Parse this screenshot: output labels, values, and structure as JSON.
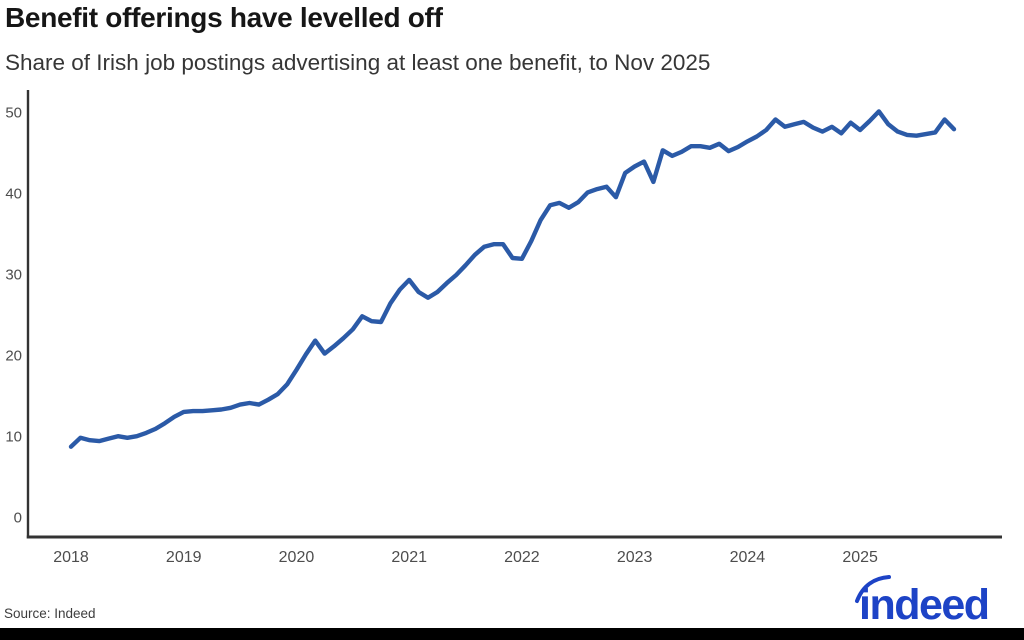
{
  "header": {
    "title": "Benefit offerings have levelled off",
    "subtitle": "Share of Irish job postings advertising at least one benefit, to Nov 2025"
  },
  "source": {
    "label": "Source: Indeed"
  },
  "logo": {
    "text": "indeed",
    "color": "#1d43c6"
  },
  "colors": {
    "line": "#2b5aa7",
    "axis": "#333333",
    "tick_text": "#4d4d4d",
    "title_text": "#161616",
    "subtitle_text": "#363636",
    "source_text": "#3d3d3d",
    "bottom_bar": "#000000",
    "background": "#ffffff"
  },
  "chart_data": {
    "type": "line",
    "title": "Benefit offerings have levelled off",
    "subtitle": "Share of Irish job postings advertising at least one benefit, to Nov 2025",
    "xlabel": "",
    "ylabel": "",
    "x_start": "2018-01",
    "x_end": "2025-11",
    "x_frequency": "monthly",
    "x_tick_labels": [
      "2018",
      "2019",
      "2020",
      "2021",
      "2022",
      "2023",
      "2024",
      "2025"
    ],
    "y_ticks": [
      0,
      10,
      20,
      30,
      40,
      50
    ],
    "ylim": [
      0,
      52
    ],
    "grid": false,
    "legend": false,
    "series": [
      {
        "name": "Share of Irish job postings advertising at least one benefit (%)",
        "monthly_values": [
          8.8,
          9.9,
          9.6,
          9.5,
          9.8,
          10.1,
          9.9,
          10.1,
          10.5,
          11.0,
          11.7,
          12.5,
          13.1,
          13.2,
          13.2,
          13.3,
          13.4,
          13.6,
          14.0,
          14.2,
          14.0,
          14.6,
          15.3,
          16.5,
          18.3,
          20.2,
          21.9,
          20.3,
          21.2,
          22.2,
          23.3,
          24.9,
          24.3,
          24.2,
          26.5,
          28.2,
          29.4,
          27.9,
          27.2,
          27.9,
          29.0,
          30.0,
          31.2,
          32.5,
          33.5,
          33.8,
          33.8,
          32.1,
          32.0,
          34.2,
          36.8,
          38.6,
          38.9,
          38.3,
          39.0,
          40.2,
          40.6,
          40.9,
          39.6,
          42.6,
          43.4,
          44.0,
          41.5,
          45.4,
          44.7,
          45.2,
          45.9,
          45.9,
          45.7,
          46.2,
          45.3,
          45.8,
          46.5,
          47.1,
          47.9,
          49.2,
          48.3,
          48.6,
          48.9,
          48.2,
          47.7,
          48.3,
          47.5,
          48.8,
          47.9,
          49.0,
          50.2,
          48.6,
          47.7,
          47.3,
          47.2,
          47.4,
          47.6,
          49.2,
          48.0
        ]
      }
    ]
  }
}
